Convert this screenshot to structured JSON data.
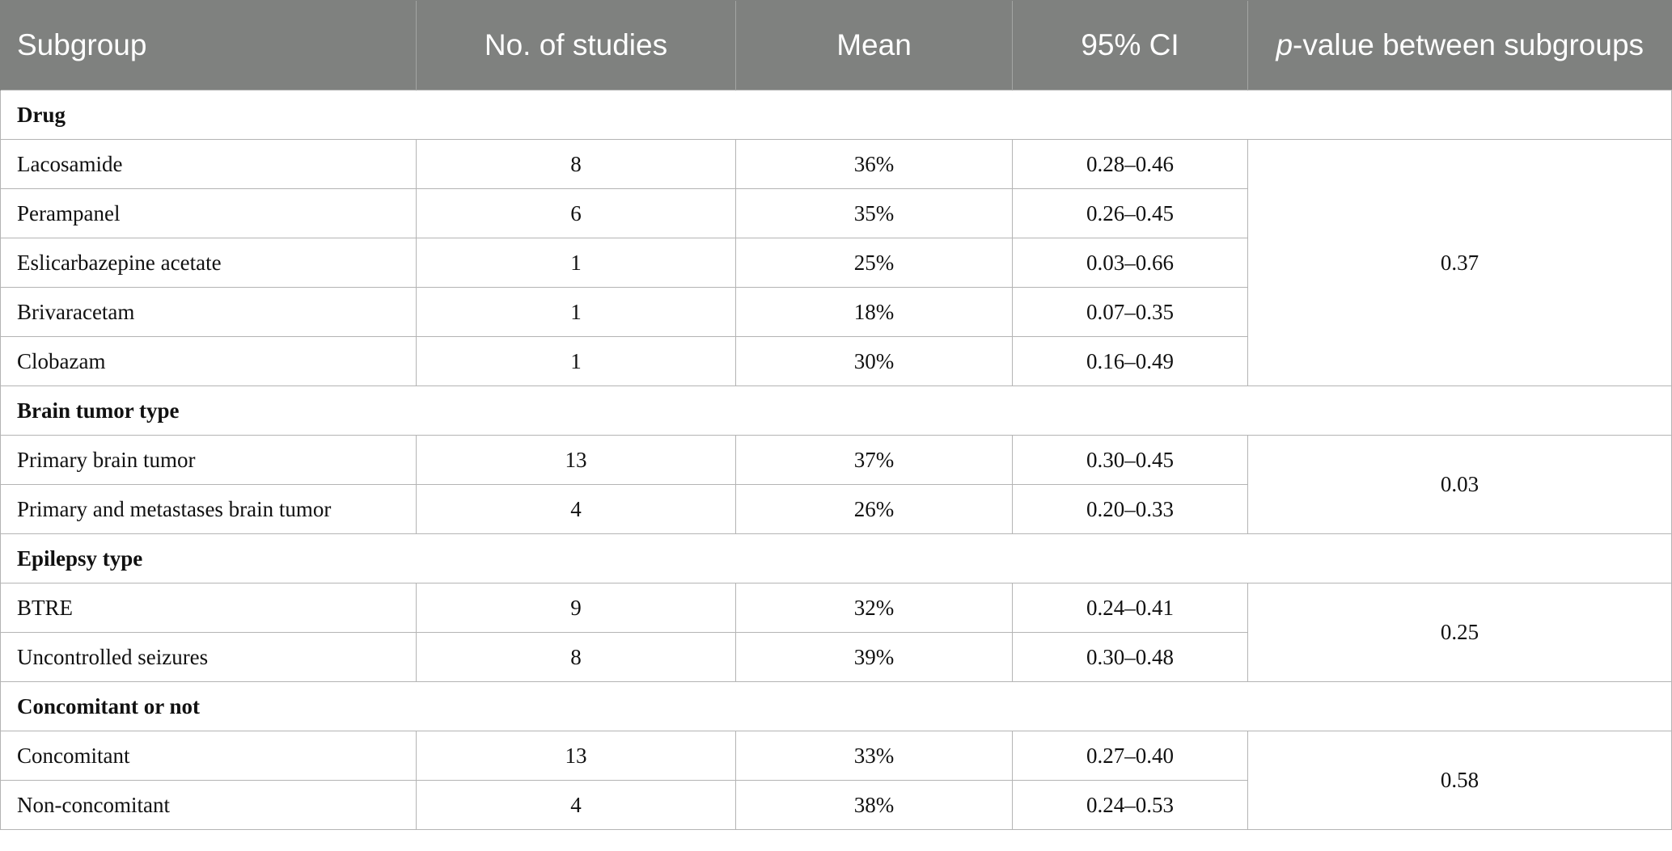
{
  "header": {
    "subgroup": "Subgroup",
    "studies": "No. of studies",
    "mean": "Mean",
    "ci": "95% CI",
    "p_italic": "p",
    "p_rest": "-value between subgroups"
  },
  "sections": [
    {
      "title": "Drug",
      "p_value": "0.37",
      "rows": [
        {
          "name": "Lacosamide",
          "studies": "8",
          "mean": "36%",
          "ci": "0.28–0.46"
        },
        {
          "name": "Perampanel",
          "studies": "6",
          "mean": "35%",
          "ci": "0.26–0.45"
        },
        {
          "name": "Eslicarbazepine acetate",
          "studies": "1",
          "mean": "25%",
          "ci": "0.03–0.66"
        },
        {
          "name": "Brivaracetam",
          "studies": "1",
          "mean": "18%",
          "ci": "0.07–0.35"
        },
        {
          "name": "Clobazam",
          "studies": "1",
          "mean": "30%",
          "ci": "0.16–0.49"
        }
      ]
    },
    {
      "title": "Brain tumor type",
      "p_value": "0.03",
      "rows": [
        {
          "name": "Primary brain tumor",
          "studies": "13",
          "mean": "37%",
          "ci": "0.30–0.45"
        },
        {
          "name": "Primary and metastases brain tumor",
          "studies": "4",
          "mean": "26%",
          "ci": "0.20–0.33"
        }
      ]
    },
    {
      "title": "Epilepsy type",
      "p_value": "0.25",
      "rows": [
        {
          "name": "BTRE",
          "studies": "9",
          "mean": "32%",
          "ci": "0.24–0.41"
        },
        {
          "name": "Uncontrolled seizures",
          "studies": "8",
          "mean": "39%",
          "ci": "0.30–0.48"
        }
      ]
    },
    {
      "title": "Concomitant or not",
      "p_value": "0.58",
      "rows": [
        {
          "name": "Concomitant",
          "studies": "13",
          "mean": "33%",
          "ci": "0.27–0.40"
        },
        {
          "name": "Non-concomitant",
          "studies": "4",
          "mean": "38%",
          "ci": "0.24–0.53"
        }
      ]
    }
  ]
}
